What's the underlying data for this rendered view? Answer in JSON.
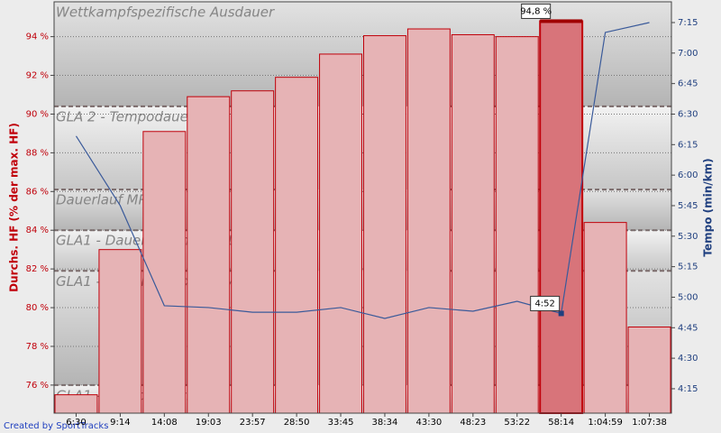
{
  "chart_data": {
    "type": "bar",
    "ylabel": "Durchs. HF (% der max. HF)",
    "y2label": "Tempo (min/km)",
    "credit": "Created by SportTracks",
    "categories": [
      "6:30",
      "9:14",
      "14:08",
      "19:03",
      "23:57",
      "28:50",
      "33:45",
      "38:34",
      "43:30",
      "48:23",
      "53:22",
      "58:14",
      "1:04:59",
      "1:07:38"
    ],
    "series": [
      {
        "name": "Durchs. HF",
        "type": "bar",
        "color": "#c0000a",
        "fill": "#e6b3b5",
        "highlight_fill": "#d8747a",
        "values": [
          75.5,
          83.0,
          89.1,
          90.9,
          91.2,
          91.9,
          93.1,
          94.05,
          94.4,
          94.1,
          94.0,
          94.8,
          84.4,
          79.0
        ],
        "value_labels": [
          null,
          null,
          null,
          null,
          null,
          null,
          null,
          null,
          null,
          null,
          null,
          "94,8 %",
          null,
          null
        ]
      },
      {
        "name": "Tempo",
        "type": "line",
        "axis": "y2",
        "color": "#3a5a9a",
        "values": [
          6.32,
          5.75,
          4.93,
          4.915,
          4.877,
          4.877,
          4.915,
          4.826,
          4.915,
          4.885,
          4.966,
          4.867,
          7.169,
          7.25
        ],
        "value_labels": [
          null,
          null,
          null,
          null,
          null,
          null,
          null,
          null,
          null,
          null,
          null,
          "4:52",
          null,
          null
        ]
      }
    ],
    "highlight": 11,
    "zones": {
      "bounds": [
        76.0,
        81.9,
        84.0,
        86.1,
        90.4
      ],
      "labels": [
        "GLA1 - Überdistanzlauf",
        "GLA1 - Dauerlauf extensiv",
        "GLA1 - Dauerlauf mittelintensiv",
        "Dauerlauf MRT",
        "GLA 2 - Tempodauerlauf",
        "Wettkampfspezifische Ausdauer"
      ]
    },
    "ylim": [
      74.55,
      95.8
    ],
    "yticks": [
      {
        "value": 76,
        "label": "76 %"
      },
      {
        "value": 78,
        "label": "78 %"
      },
      {
        "value": 80,
        "label": "80 %"
      },
      {
        "value": 82,
        "label": "82 %"
      },
      {
        "value": 84,
        "label": "84 %"
      },
      {
        "value": 86,
        "label": "86 %"
      },
      {
        "value": 88,
        "label": "88 %"
      },
      {
        "value": 90,
        "label": "90 %"
      },
      {
        "value": 92,
        "label": "92 %"
      },
      {
        "value": 94,
        "label": "94 %"
      }
    ],
    "y2lim": [
      4.05,
      7.42
    ],
    "y2ticks": [
      {
        "value": 4.25,
        "label": "4:15"
      },
      {
        "value": 4.5,
        "label": "4:30"
      },
      {
        "value": 4.75,
        "label": "4:45"
      },
      {
        "value": 5,
        "label": "5:00"
      },
      {
        "value": 5.25,
        "label": "5:15"
      },
      {
        "value": 5.5,
        "label": "5:30"
      },
      {
        "value": 5.75,
        "label": "5:45"
      },
      {
        "value": 6,
        "label": "6:00"
      },
      {
        "value": 6.25,
        "label": "6:15"
      },
      {
        "value": 6.5,
        "label": "6:30"
      },
      {
        "value": 6.75,
        "label": "6:45"
      },
      {
        "value": 7,
        "label": "7:00"
      },
      {
        "value": 7.25,
        "label": "7:15"
      }
    ],
    "grid": true
  }
}
